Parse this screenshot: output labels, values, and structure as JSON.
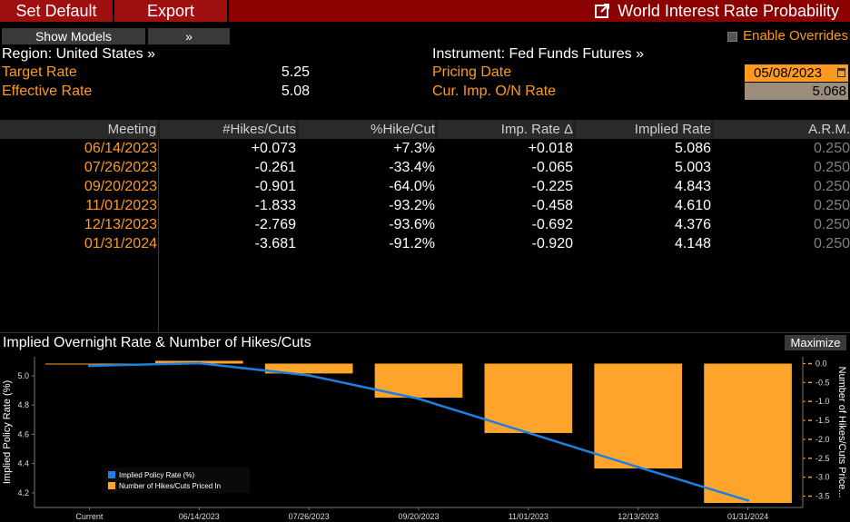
{
  "toolbar": {
    "set_default": "Set Default",
    "export": "Export",
    "title": "World Interest Rate Probability"
  },
  "controls": {
    "show_models": "Show Models",
    "chevron": "»",
    "enable_overrides": "Enable Overrides"
  },
  "header": {
    "region": "Region: United States »",
    "instrument": "Instrument: Fed Funds Futures »",
    "target_rate_label": "Target Rate",
    "target_rate": "5.25",
    "effective_rate_label": "Effective Rate",
    "effective_rate": "5.08",
    "pricing_date_label": "Pricing Date",
    "pricing_date": "05/08/2023",
    "cur_imp_label": "Cur. Imp. O/N Rate",
    "cur_imp": "5.068"
  },
  "table": {
    "columns": [
      "Meeting",
      "#Hikes/Cuts",
      "%Hike/Cut",
      "Imp. Rate Δ",
      "Implied Rate",
      "A.R.M."
    ],
    "rows": [
      [
        "06/14/2023",
        "+0.073",
        "+7.3%",
        "+0.018",
        "5.086",
        "0.250"
      ],
      [
        "07/26/2023",
        "-0.261",
        "-33.4%",
        "-0.065",
        "5.003",
        "0.250"
      ],
      [
        "09/20/2023",
        "-0.901",
        "-64.0%",
        "-0.225",
        "4.843",
        "0.250"
      ],
      [
        "11/01/2023",
        "-1.833",
        "-93.2%",
        "-0.458",
        "4.610",
        "0.250"
      ],
      [
        "12/13/2023",
        "-2.769",
        "-93.6%",
        "-0.692",
        "4.376",
        "0.250"
      ],
      [
        "01/31/2024",
        "-3.681",
        "-91.2%",
        "-0.920",
        "4.148",
        "0.250"
      ]
    ]
  },
  "chart": {
    "title": "Implied Overnight Rate & Number of Hikes/Cuts",
    "maximize": "Maximize"
  },
  "chart_data": {
    "type": "bar",
    "categories": [
      "Current",
      "06/14/2023",
      "07/26/2023",
      "09/20/2023",
      "11/01/2023",
      "12/13/2023",
      "01/31/2024"
    ],
    "series": [
      {
        "name": "Implied Policy Rate (%)",
        "type": "line",
        "axis": "left",
        "color": "#1e7fe0",
        "values": [
          5.068,
          5.086,
          5.003,
          4.843,
          4.61,
          4.376,
          4.148
        ]
      },
      {
        "name": "Number of Hikes/Cuts Priced In",
        "type": "bar",
        "axis": "right",
        "color": "#ffa42b",
        "values": [
          0,
          0.073,
          -0.261,
          -0.901,
          -1.833,
          -2.769,
          -3.681
        ]
      }
    ],
    "ylabel": "Implied Policy Rate (%)",
    "ylabel_right": "Number of Hikes/Cuts Price...",
    "yticks_left": [
      "4.2",
      "4.4",
      "4.6",
      "4.8",
      "5.0"
    ],
    "yticks_right": [
      "0.0",
      "-0.5",
      "-1.0",
      "-1.5",
      "-2.0",
      "-2.5",
      "-3.0",
      "-3.5"
    ],
    "ylim_left": [
      4.1,
      5.13
    ],
    "ylim_right": [
      -3.8,
      0.18
    ],
    "legend": "bottom-left"
  },
  "colors": {
    "accent": "#ff9a1f",
    "topbar": "#8b0000",
    "line": "#1e7fe0",
    "bar": "#ffa42b"
  }
}
